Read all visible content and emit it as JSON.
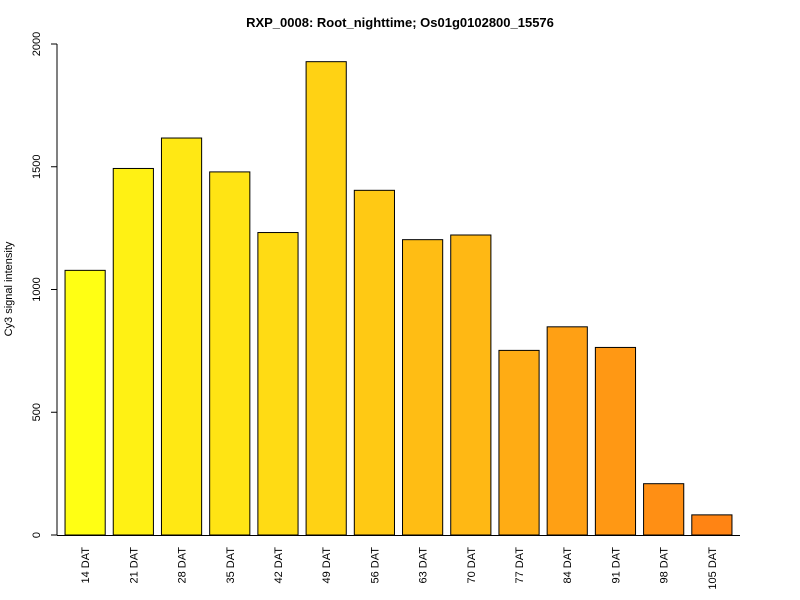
{
  "chart_data": {
    "type": "bar",
    "title": "RXP_0008: Root_nighttime; Os01g0102800_15576",
    "xlabel": "",
    "ylabel": "Cy3 signal intensity",
    "ylim": [
      0,
      2000
    ],
    "yticks": [
      0,
      500,
      1000,
      1500,
      2000
    ],
    "grid": false,
    "categories": [
      "14 DAT",
      "21 DAT",
      "28 DAT",
      "35 DAT",
      "42 DAT",
      "49 DAT",
      "56 DAT",
      "63 DAT",
      "70 DAT",
      "77 DAT",
      "84 DAT",
      "91 DAT",
      "98 DAT",
      "105 DAT"
    ],
    "values": [
      1078,
      1493,
      1617,
      1479,
      1232,
      1928,
      1404,
      1203,
      1222,
      752,
      848,
      764,
      209,
      82
    ],
    "colors": [
      "#FFFF14",
      "#FFF114",
      "#FFE814",
      "#FFE414",
      "#FFDB14",
      "#FFD214",
      "#FFC914",
      "#FFBD14",
      "#FFB814",
      "#FFAC14",
      "#FFA014",
      "#FF9814",
      "#FF8F14",
      "#FF8414"
    ]
  }
}
